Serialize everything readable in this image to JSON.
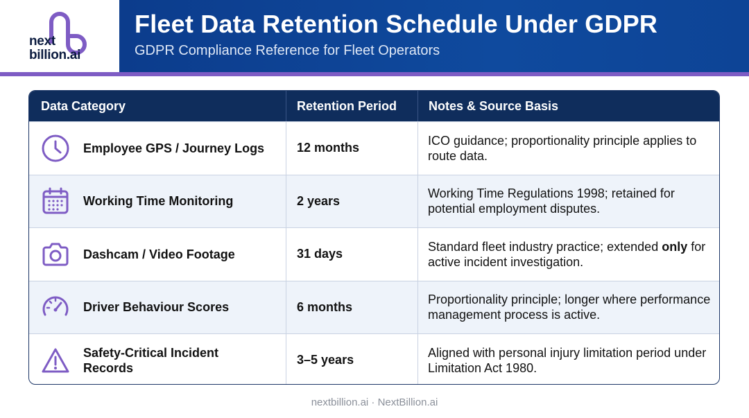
{
  "brand": {
    "line1": "next",
    "line2": "billion.ai"
  },
  "header": {
    "title": "Fleet Data Retention Schedule Under GDPR",
    "subtitle": "GDPR Compliance Reference for Fleet Operators"
  },
  "table": {
    "columns": [
      "Data Category",
      "Retention Period",
      "Notes & Source Basis"
    ],
    "rows": [
      {
        "icon": "clock-icon",
        "category": "Employee GPS / Journey Logs",
        "period": "12 months",
        "notes": "ICO guidance; proportionality principle applies to route data."
      },
      {
        "icon": "calendar-icon",
        "category": "Working Time Monitoring",
        "period": "2 years",
        "notes": "Working Time Regulations 1998; retained for potential employment disputes."
      },
      {
        "icon": "camera-icon",
        "category": "Dashcam / Video Footage",
        "period": "31 days",
        "notes_pre": "Standard fleet industry practice; extended ",
        "notes_bold": "only",
        "notes_post": " for active incident investigation."
      },
      {
        "icon": "speedometer-icon",
        "category": "Driver Behaviour Scores",
        "period": "6 months",
        "notes": "Proportionality principle; longer where performance management process is active."
      },
      {
        "icon": "warning-icon",
        "category": "Safety-Critical Incident Records",
        "period": "3–5 years",
        "notes": "Aligned with personal injury limitation period under Limitation Act 1980."
      }
    ]
  },
  "footer": {
    "text": "nextbillion.ai · NextBillion.ai"
  },
  "colors": {
    "header_bg": "#0f4a9e",
    "table_head": "#0f2d5c",
    "accent_purple": "#7e5cc4",
    "alt_row": "#eef3fa"
  }
}
